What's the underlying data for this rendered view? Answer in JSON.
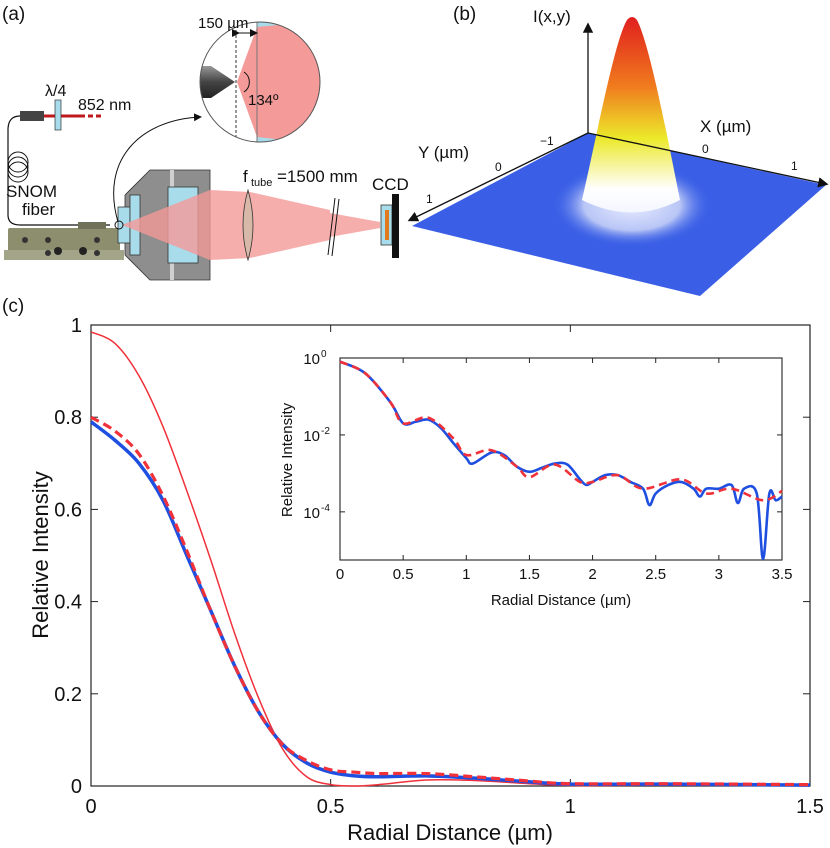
{
  "panels": {
    "a": {
      "label": "(a)",
      "waveplate": "λ/4",
      "wavelength": "852 nm",
      "fiber": [
        "SNOM",
        "fiber"
      ],
      "gap": "150 µm",
      "angle": "134º",
      "tube_f": "f",
      "tube_sub": "tube",
      "tube_val": "=1500 mm",
      "camera": "CCD"
    },
    "b": {
      "label": "(b)",
      "z_label": "I(x,y)",
      "x_label": "X (µm)",
      "y_label": "Y (µm)",
      "x_ticks": [
        "0",
        "1"
      ],
      "y_ticks": [
        "−1",
        "0",
        "1"
      ]
    },
    "c": {
      "label": "(c)"
    }
  },
  "colors": {
    "measured": "#1f4fe0",
    "fit": "#f0313a",
    "ideal": "#f0313a",
    "surface": "#3a5fe6"
  },
  "chart_data": [
    {
      "type": "line",
      "xlabel": "Radial Distance (µm)",
      "ylabel": "Relative Intensity",
      "xlim": [
        0,
        1.5
      ],
      "ylim": [
        0,
        1
      ],
      "x_ticks": [
        "0",
        "0.5",
        "1",
        "1.5"
      ],
      "y_ticks": [
        "0",
        "0.2",
        "0.4",
        "0.6",
        "0.8",
        "1"
      ],
      "grid": false,
      "x": [
        0,
        0.05,
        0.1,
        0.15,
        0.2,
        0.25,
        0.3,
        0.35,
        0.4,
        0.45,
        0.5,
        0.55,
        0.6,
        0.7,
        0.8,
        0.9,
        1.0,
        1.2,
        1.5
      ],
      "series": [
        {
          "style": "thin-solid-red",
          "values": [
            0.985,
            0.96,
            0.89,
            0.78,
            0.64,
            0.49,
            0.33,
            0.19,
            0.08,
            0.02,
            0.003,
            0.0,
            0.003,
            0.013,
            0.012,
            0.006,
            0.001,
            0.002,
            0.001
          ]
        },
        {
          "style": "thick-solid-blue",
          "values": [
            0.79,
            0.75,
            0.7,
            0.62,
            0.5,
            0.38,
            0.26,
            0.16,
            0.09,
            0.05,
            0.03,
            0.022,
            0.02,
            0.022,
            0.017,
            0.01,
            0.004,
            0.004,
            0.002
          ]
        },
        {
          "style": "thick-dashed-red",
          "values": [
            0.8,
            0.77,
            0.72,
            0.63,
            0.51,
            0.38,
            0.26,
            0.16,
            0.09,
            0.055,
            0.035,
            0.03,
            0.027,
            0.027,
            0.02,
            0.012,
            0.005,
            0.005,
            0.003
          ]
        }
      ]
    },
    {
      "type": "line",
      "scale": "log-y",
      "xlabel": "Radial Distance (µm)",
      "ylabel": "Relative Intensity",
      "xlim": [
        0,
        3.5
      ],
      "ylim": [
        5.6e-06,
        1
      ],
      "x_ticks": [
        "0",
        "0.5",
        "1",
        "1.5",
        "2",
        "2.5",
        "3",
        "3.5"
      ],
      "y_ticks": [
        {
          "base": "10",
          "exp": "0"
        },
        {
          "base": "10",
          "exp": "-2"
        },
        {
          "base": "10",
          "exp": "-4"
        }
      ],
      "grid": false,
      "series": [
        {
          "style": "thick-solid-blue",
          "x": [
            0,
            0.2,
            0.4,
            0.5,
            0.6,
            0.7,
            0.8,
            0.9,
            1.0,
            1.05,
            1.2,
            1.3,
            1.4,
            1.5,
            1.6,
            1.7,
            1.8,
            1.9,
            1.95,
            2.0,
            2.1,
            2.2,
            2.3,
            2.4,
            2.45,
            2.5,
            2.6,
            2.7,
            2.8,
            2.85,
            2.9,
            3.0,
            3.1,
            3.15,
            3.2,
            3.3,
            3.35,
            3.4,
            3.45,
            3.5
          ],
          "values": [
            0.8,
            0.4,
            0.07,
            0.02,
            0.022,
            0.025,
            0.015,
            0.006,
            0.0025,
            0.0018,
            0.0035,
            0.003,
            0.0015,
            0.0011,
            0.0014,
            0.0018,
            0.0017,
            0.0007,
            0.0005,
            0.0006,
            0.0009,
            0.0009,
            0.0006,
            0.0004,
            0.00015,
            0.0003,
            0.0005,
            0.0006,
            0.0004,
            0.00025,
            0.0004,
            0.0004,
            0.0005,
            0.00017,
            0.0004,
            0.0003,
            6e-06,
            0.0003,
            0.0002,
            0.00025
          ]
        },
        {
          "style": "thick-dashed-red",
          "x": [
            0,
            0.2,
            0.4,
            0.5,
            0.7,
            0.9,
            1.0,
            1.2,
            1.4,
            1.5,
            1.7,
            1.9,
            2.0,
            2.2,
            2.4,
            2.7,
            2.9,
            3.1,
            3.35,
            3.5
          ],
          "values": [
            0.8,
            0.4,
            0.07,
            0.02,
            0.028,
            0.008,
            0.003,
            0.004,
            0.0015,
            0.0008,
            0.0017,
            0.0006,
            0.0006,
            0.0009,
            0.0004,
            0.0007,
            0.0003,
            0.0004,
            0.0002,
            0.00035
          ]
        }
      ]
    }
  ]
}
